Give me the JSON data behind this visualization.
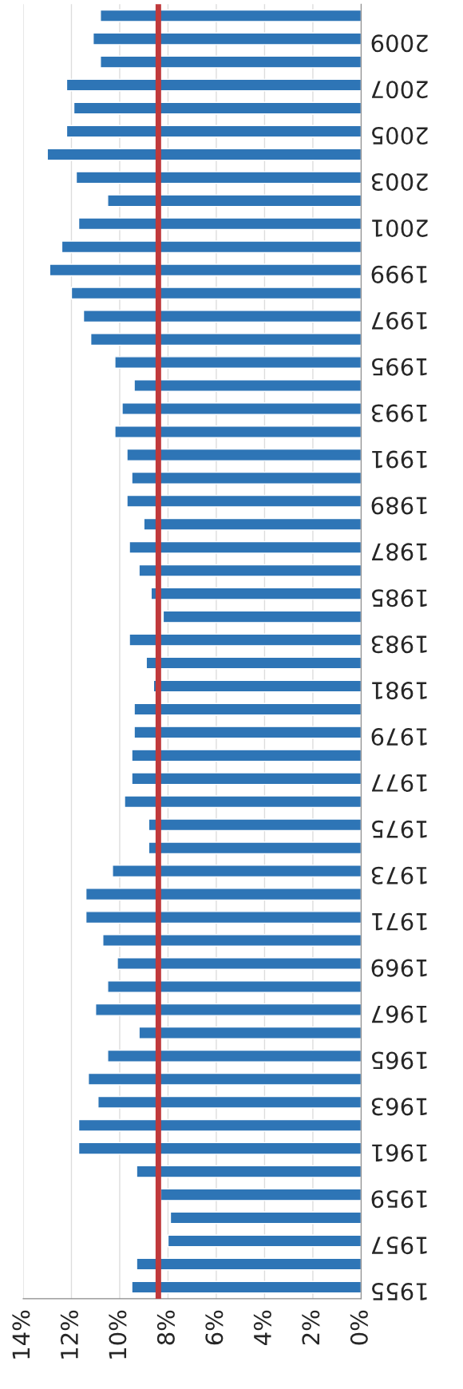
{
  "chart_data": {
    "type": "bar",
    "orientation": "horizontal",
    "categories": [
      null,
      "2009",
      null,
      "2007",
      null,
      "2005",
      null,
      "2003",
      null,
      "2001",
      null,
      "1999",
      null,
      "1997",
      null,
      "1995",
      null,
      "1993",
      null,
      "1991",
      null,
      "1989",
      null,
      "1987",
      null,
      "1985",
      null,
      "1983",
      null,
      "1981",
      null,
      "1979",
      null,
      "1977",
      null,
      "1975",
      null,
      "1973",
      null,
      "1971",
      null,
      "1969",
      null,
      "1967",
      null,
      "1965",
      null,
      "1963",
      null,
      "1961",
      null,
      "1959",
      null,
      "1957",
      null,
      "1955"
    ],
    "values": [
      10.8,
      11.1,
      10.8,
      12.2,
      11.9,
      12.2,
      13.0,
      11.8,
      10.5,
      11.7,
      12.4,
      12.9,
      12.0,
      11.5,
      11.2,
      10.2,
      9.4,
      9.9,
      10.2,
      9.7,
      9.5,
      9.7,
      9.0,
      9.6,
      9.2,
      8.7,
      8.2,
      9.6,
      8.9,
      8.6,
      9.4,
      9.4,
      9.5,
      9.5,
      9.8,
      8.8,
      8.8,
      10.3,
      11.4,
      11.4,
      10.7,
      10.1,
      10.5,
      11.0,
      9.2,
      10.5,
      11.3,
      10.9,
      11.7,
      11.7,
      9.3,
      8.3,
      7.9,
      8.0,
      9.3,
      9.5
    ],
    "color": "#2e75b6",
    "xlim": [
      14,
      0
    ],
    "xticks": [
      {
        "value": 14,
        "label": "14%"
      },
      {
        "value": 12,
        "label": "12%"
      },
      {
        "value": 10,
        "label": "10%"
      },
      {
        "value": 8,
        "label": "8%"
      },
      {
        "value": 6,
        "label": "6%"
      },
      {
        "value": 4,
        "label": "4%"
      },
      {
        "value": 2,
        "label": "2%"
      },
      {
        "value": 0,
        "label": "0%"
      }
    ],
    "grid": "x",
    "ref_lines": [
      {
        "axis": "x",
        "value": 8.4,
        "color": "#c0393b"
      }
    ]
  }
}
